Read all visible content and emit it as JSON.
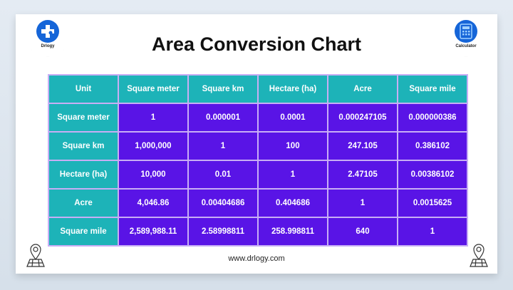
{
  "logo": {
    "label": "Drlogy",
    "icon": "stethoscope-cross-icon"
  },
  "calculator_badge": {
    "label": "Calculator",
    "icon": "calculator-icon"
  },
  "title": "Area Conversion Chart",
  "table": {
    "headers": [
      "Unit",
      "Square meter",
      "Square km",
      "Hectare (ha)",
      "Acre",
      "Square mile"
    ],
    "rows": [
      [
        "Square meter",
        "1",
        "0.000001",
        "0.0001",
        "0.000247105",
        "0.000000386"
      ],
      [
        "Square km",
        "1,000,000",
        "1",
        "100",
        "247.105",
        "0.386102"
      ],
      [
        "Hectare (ha)",
        "10,000",
        "0.01",
        "1",
        "2.47105",
        "0.00386102"
      ],
      [
        "Acre",
        "4,046.86",
        "0.00404686",
        "0.404686",
        "1",
        "0.0015625"
      ],
      [
        "Square mile",
        "2,589,988.11",
        "2.58998811",
        "258.998811",
        "640",
        "1"
      ]
    ]
  },
  "footer": "www.drlogy.com",
  "colors": {
    "header": "#1db3b8",
    "cell": "#5914e6",
    "border": "#c8aef5"
  }
}
